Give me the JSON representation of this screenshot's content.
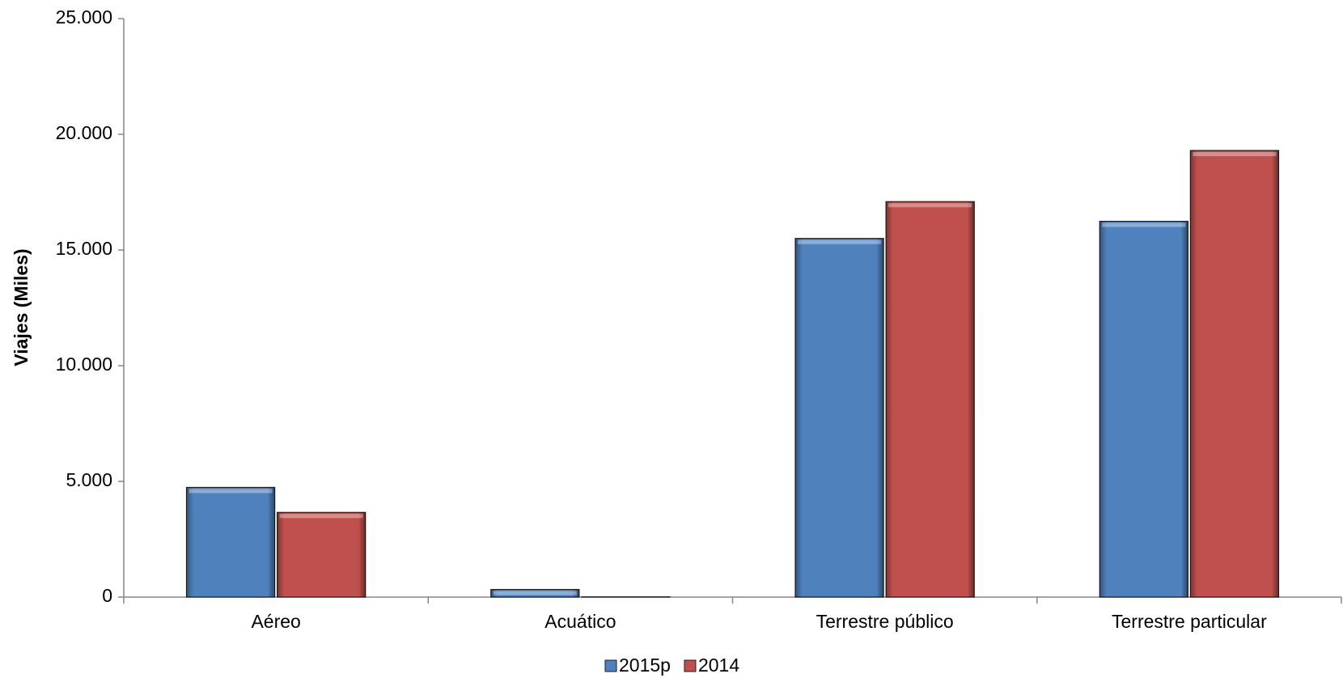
{
  "chart_data": {
    "type": "bar",
    "y_label": "Viajes (Miles)",
    "categories": [
      "Aéreo",
      "Acuático",
      "Terrestre público",
      "Terrestre particular"
    ],
    "series": [
      {
        "name": "2015p",
        "color": "#4f81bd",
        "values": [
          4740,
          330,
          15500,
          16240
        ]
      },
      {
        "name": "2014",
        "color": "#c0504d",
        "values": [
          3660,
          10,
          17090,
          19300
        ]
      }
    ],
    "ylim": [
      0,
      25000
    ],
    "yticks": [
      0,
      {
        "value": 5000,
        "label": "5.000"
      },
      {
        "value": 10000,
        "label": "10.000"
      },
      {
        "value": 15000,
        "label": "15.000"
      },
      {
        "value": 20000,
        "label": "20.000"
      },
      {
        "value": 25000,
        "label": "25.000"
      }
    ],
    "legend": "bottom"
  }
}
